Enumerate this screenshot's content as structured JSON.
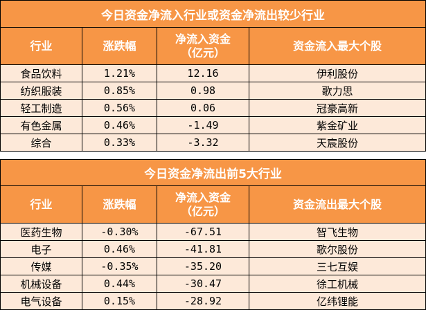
{
  "inflow_table": {
    "title": "今日资金净流入行业或资金净流出较少行业",
    "headers": {
      "industry": "行业",
      "change": "涨跌幅",
      "net_flow_line1": "净流入资金",
      "net_flow_line2": "（亿元）",
      "top_stock": "资金流入最大个股"
    },
    "rows": [
      {
        "industry": "食品饮料",
        "change": "1.21%",
        "net_flow": "12.16",
        "top_stock": "伊利股份"
      },
      {
        "industry": "纺织服装",
        "change": "0.85%",
        "net_flow": "0.98",
        "top_stock": "歌力思"
      },
      {
        "industry": "轻工制造",
        "change": "0.56%",
        "net_flow": "0.06",
        "top_stock": "冠豪高新"
      },
      {
        "industry": "有色金属",
        "change": "0.46%",
        "net_flow": "-1.49",
        "top_stock": "紫金矿业"
      },
      {
        "industry": "综合",
        "change": "0.33%",
        "net_flow": "-3.32",
        "top_stock": "天宸股份"
      }
    ]
  },
  "outflow_table": {
    "title": "今日资金净流出前5大行业",
    "headers": {
      "industry": "行业",
      "change": "涨跌幅",
      "net_flow_line1": "净流入资金",
      "net_flow_line2": "（亿元）",
      "top_stock": "资金流出最大个股"
    },
    "rows": [
      {
        "industry": "医药生物",
        "change": "-0.30%",
        "net_flow": "-67.51",
        "top_stock": "智飞生物"
      },
      {
        "industry": "电子",
        "change": "0.46%",
        "net_flow": "-41.81",
        "top_stock": "歌尔股份"
      },
      {
        "industry": "传媒",
        "change": "-0.35%",
        "net_flow": "-35.20",
        "top_stock": "三七互娱"
      },
      {
        "industry": "机械设备",
        "change": "0.44%",
        "net_flow": "-30.47",
        "top_stock": "徐工机械"
      },
      {
        "industry": "电气设备",
        "change": "0.15%",
        "net_flow": "-28.92",
        "top_stock": "亿纬锂能"
      }
    ]
  },
  "colors": {
    "header_bg": "#f79646",
    "header_text": "#ffffff",
    "row_bg": "#fde9d9",
    "border": "#000000"
  }
}
